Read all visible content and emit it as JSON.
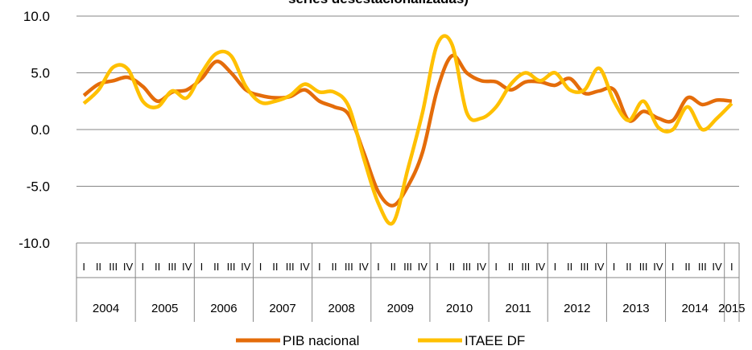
{
  "chart_data": {
    "type": "line",
    "title": "series desestacionalizadas)",
    "categories": [
      "I",
      "II",
      "III",
      "IV",
      "I",
      "II",
      "III",
      "IV",
      "I",
      "II",
      "III",
      "IV",
      "I",
      "II",
      "III",
      "IV",
      "I",
      "II",
      "III",
      "IV",
      "I",
      "II",
      "III",
      "IV",
      "I",
      "II",
      "III",
      "IV",
      "I",
      "II",
      "III",
      "IV",
      "I",
      "II",
      "III",
      "IV",
      "I",
      "II",
      "III",
      "IV",
      "I",
      "II",
      "III",
      "IV",
      "I"
    ],
    "years": [
      "2004",
      "2005",
      "2006",
      "2007",
      "2008",
      "2009",
      "2010",
      "2011",
      "2012",
      "2013",
      "2014",
      "2015"
    ],
    "series": [
      {
        "name": "PIB nacional",
        "color": "#e46c0a",
        "values": [
          3.0,
          4.0,
          4.3,
          4.6,
          3.8,
          2.5,
          3.3,
          3.5,
          4.5,
          6.0,
          5.0,
          3.5,
          3.0,
          2.8,
          2.9,
          3.5,
          2.5,
          2.0,
          1.3,
          -2.0,
          -5.5,
          -6.7,
          -5.0,
          -2.0,
          3.5,
          6.5,
          5.0,
          4.3,
          4.2,
          3.5,
          4.2,
          4.2,
          3.9,
          4.5,
          3.2,
          3.4,
          3.5,
          0.8,
          1.6,
          1.0,
          0.8,
          2.8,
          2.2,
          2.6,
          2.5
        ]
      },
      {
        "name": "ITAEE DF",
        "color": "#ffc000",
        "values": [
          2.3,
          3.5,
          5.5,
          5.3,
          2.5,
          2.0,
          3.4,
          2.8,
          5.0,
          6.7,
          6.5,
          3.8,
          2.4,
          2.5,
          3.0,
          4.0,
          3.3,
          3.3,
          2.0,
          -2.5,
          -6.5,
          -8.2,
          -3.5,
          1.5,
          7.5,
          7.5,
          1.5,
          1.0,
          2.0,
          4.0,
          5.0,
          4.3,
          5.0,
          3.5,
          3.5,
          5.4,
          2.5,
          0.8,
          2.5,
          0.2,
          0.0,
          2.0,
          0.0,
          1.0,
          2.3
        ]
      }
    ],
    "ylim": [
      -10,
      10
    ],
    "yticks": [
      {
        "value": -10,
        "label": "-10.0"
      },
      {
        "value": -5,
        "label": "-5.0"
      },
      {
        "value": 0,
        "label": "0.0"
      },
      {
        "value": 5,
        "label": "5.0"
      },
      {
        "value": 10,
        "label": "10.0"
      }
    ],
    "grid": true
  }
}
